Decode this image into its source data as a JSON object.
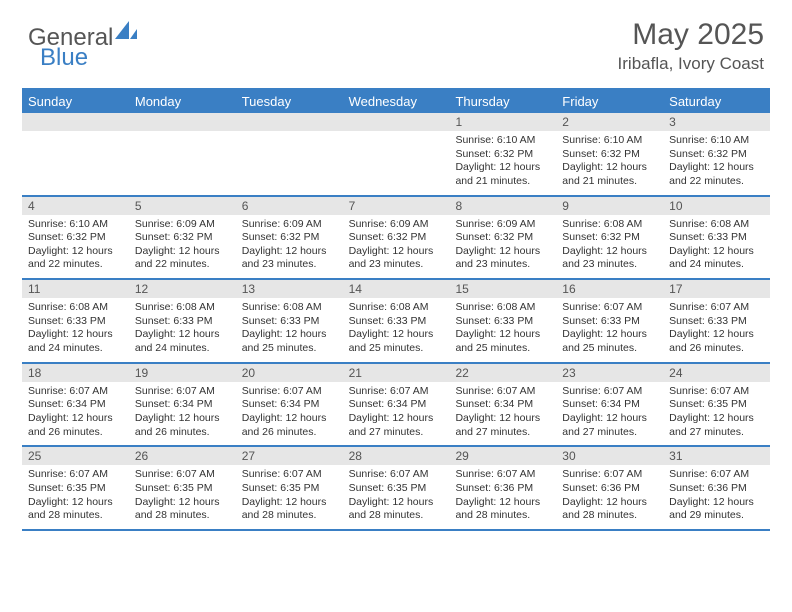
{
  "logo": {
    "textGeneral": "General",
    "textBlue": "Blue",
    "shapeColor": "#3a7fc4"
  },
  "title": "May 2025",
  "location": "Iribafla, Ivory Coast",
  "headerBg": "#3a7fc4",
  "dayNumBg": "#e6e6e6",
  "borderColor": "#3a7fc4",
  "dayHeaders": [
    "Sunday",
    "Monday",
    "Tuesday",
    "Wednesday",
    "Thursday",
    "Friday",
    "Saturday"
  ],
  "weeks": [
    {
      "nums": [
        "",
        "",
        "",
        "",
        "1",
        "2",
        "3"
      ],
      "cells": [
        null,
        null,
        null,
        null,
        {
          "sunrise": "6:10 AM",
          "sunset": "6:32 PM",
          "daylight": "12 hours and 21 minutes."
        },
        {
          "sunrise": "6:10 AM",
          "sunset": "6:32 PM",
          "daylight": "12 hours and 21 minutes."
        },
        {
          "sunrise": "6:10 AM",
          "sunset": "6:32 PM",
          "daylight": "12 hours and 22 minutes."
        }
      ]
    },
    {
      "nums": [
        "4",
        "5",
        "6",
        "7",
        "8",
        "9",
        "10"
      ],
      "cells": [
        {
          "sunrise": "6:10 AM",
          "sunset": "6:32 PM",
          "daylight": "12 hours and 22 minutes."
        },
        {
          "sunrise": "6:09 AM",
          "sunset": "6:32 PM",
          "daylight": "12 hours and 22 minutes."
        },
        {
          "sunrise": "6:09 AM",
          "sunset": "6:32 PM",
          "daylight": "12 hours and 23 minutes."
        },
        {
          "sunrise": "6:09 AM",
          "sunset": "6:32 PM",
          "daylight": "12 hours and 23 minutes."
        },
        {
          "sunrise": "6:09 AM",
          "sunset": "6:32 PM",
          "daylight": "12 hours and 23 minutes."
        },
        {
          "sunrise": "6:08 AM",
          "sunset": "6:32 PM",
          "daylight": "12 hours and 23 minutes."
        },
        {
          "sunrise": "6:08 AM",
          "sunset": "6:33 PM",
          "daylight": "12 hours and 24 minutes."
        }
      ]
    },
    {
      "nums": [
        "11",
        "12",
        "13",
        "14",
        "15",
        "16",
        "17"
      ],
      "cells": [
        {
          "sunrise": "6:08 AM",
          "sunset": "6:33 PM",
          "daylight": "12 hours and 24 minutes."
        },
        {
          "sunrise": "6:08 AM",
          "sunset": "6:33 PM",
          "daylight": "12 hours and 24 minutes."
        },
        {
          "sunrise": "6:08 AM",
          "sunset": "6:33 PM",
          "daylight": "12 hours and 25 minutes."
        },
        {
          "sunrise": "6:08 AM",
          "sunset": "6:33 PM",
          "daylight": "12 hours and 25 minutes."
        },
        {
          "sunrise": "6:08 AM",
          "sunset": "6:33 PM",
          "daylight": "12 hours and 25 minutes."
        },
        {
          "sunrise": "6:07 AM",
          "sunset": "6:33 PM",
          "daylight": "12 hours and 25 minutes."
        },
        {
          "sunrise": "6:07 AM",
          "sunset": "6:33 PM",
          "daylight": "12 hours and 26 minutes."
        }
      ]
    },
    {
      "nums": [
        "18",
        "19",
        "20",
        "21",
        "22",
        "23",
        "24"
      ],
      "cells": [
        {
          "sunrise": "6:07 AM",
          "sunset": "6:34 PM",
          "daylight": "12 hours and 26 minutes."
        },
        {
          "sunrise": "6:07 AM",
          "sunset": "6:34 PM",
          "daylight": "12 hours and 26 minutes."
        },
        {
          "sunrise": "6:07 AM",
          "sunset": "6:34 PM",
          "daylight": "12 hours and 26 minutes."
        },
        {
          "sunrise": "6:07 AM",
          "sunset": "6:34 PM",
          "daylight": "12 hours and 27 minutes."
        },
        {
          "sunrise": "6:07 AM",
          "sunset": "6:34 PM",
          "daylight": "12 hours and 27 minutes."
        },
        {
          "sunrise": "6:07 AM",
          "sunset": "6:34 PM",
          "daylight": "12 hours and 27 minutes."
        },
        {
          "sunrise": "6:07 AM",
          "sunset": "6:35 PM",
          "daylight": "12 hours and 27 minutes."
        }
      ]
    },
    {
      "nums": [
        "25",
        "26",
        "27",
        "28",
        "29",
        "30",
        "31"
      ],
      "cells": [
        {
          "sunrise": "6:07 AM",
          "sunset": "6:35 PM",
          "daylight": "12 hours and 28 minutes."
        },
        {
          "sunrise": "6:07 AM",
          "sunset": "6:35 PM",
          "daylight": "12 hours and 28 minutes."
        },
        {
          "sunrise": "6:07 AM",
          "sunset": "6:35 PM",
          "daylight": "12 hours and 28 minutes."
        },
        {
          "sunrise": "6:07 AM",
          "sunset": "6:35 PM",
          "daylight": "12 hours and 28 minutes."
        },
        {
          "sunrise": "6:07 AM",
          "sunset": "6:36 PM",
          "daylight": "12 hours and 28 minutes."
        },
        {
          "sunrise": "6:07 AM",
          "sunset": "6:36 PM",
          "daylight": "12 hours and 28 minutes."
        },
        {
          "sunrise": "6:07 AM",
          "sunset": "6:36 PM",
          "daylight": "12 hours and 29 minutes."
        }
      ]
    }
  ],
  "labels": {
    "sunrise": "Sunrise: ",
    "sunset": "Sunset: ",
    "daylight": "Daylight: "
  }
}
